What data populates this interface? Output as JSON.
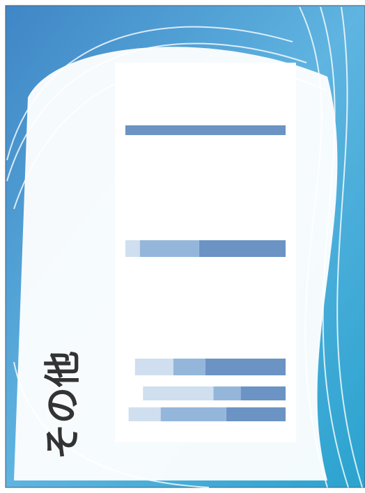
{
  "title": "その他",
  "panels": [
    {
      "bars": [
        {
          "segments": [
            100
          ]
        }
      ]
    },
    {
      "bars": [
        {
          "segments": [
            54,
            37,
            9
          ]
        }
      ]
    },
    {
      "bars": [
        {
          "segments": [
            50,
            20,
            24
          ]
        },
        {
          "segments": [
            28,
            17,
            44
          ]
        },
        {
          "segments": [
            37,
            41,
            20
          ]
        }
      ]
    }
  ],
  "segment_colors": [
    "#6b93c4",
    "#95b6db",
    "#cfdff0"
  ]
}
